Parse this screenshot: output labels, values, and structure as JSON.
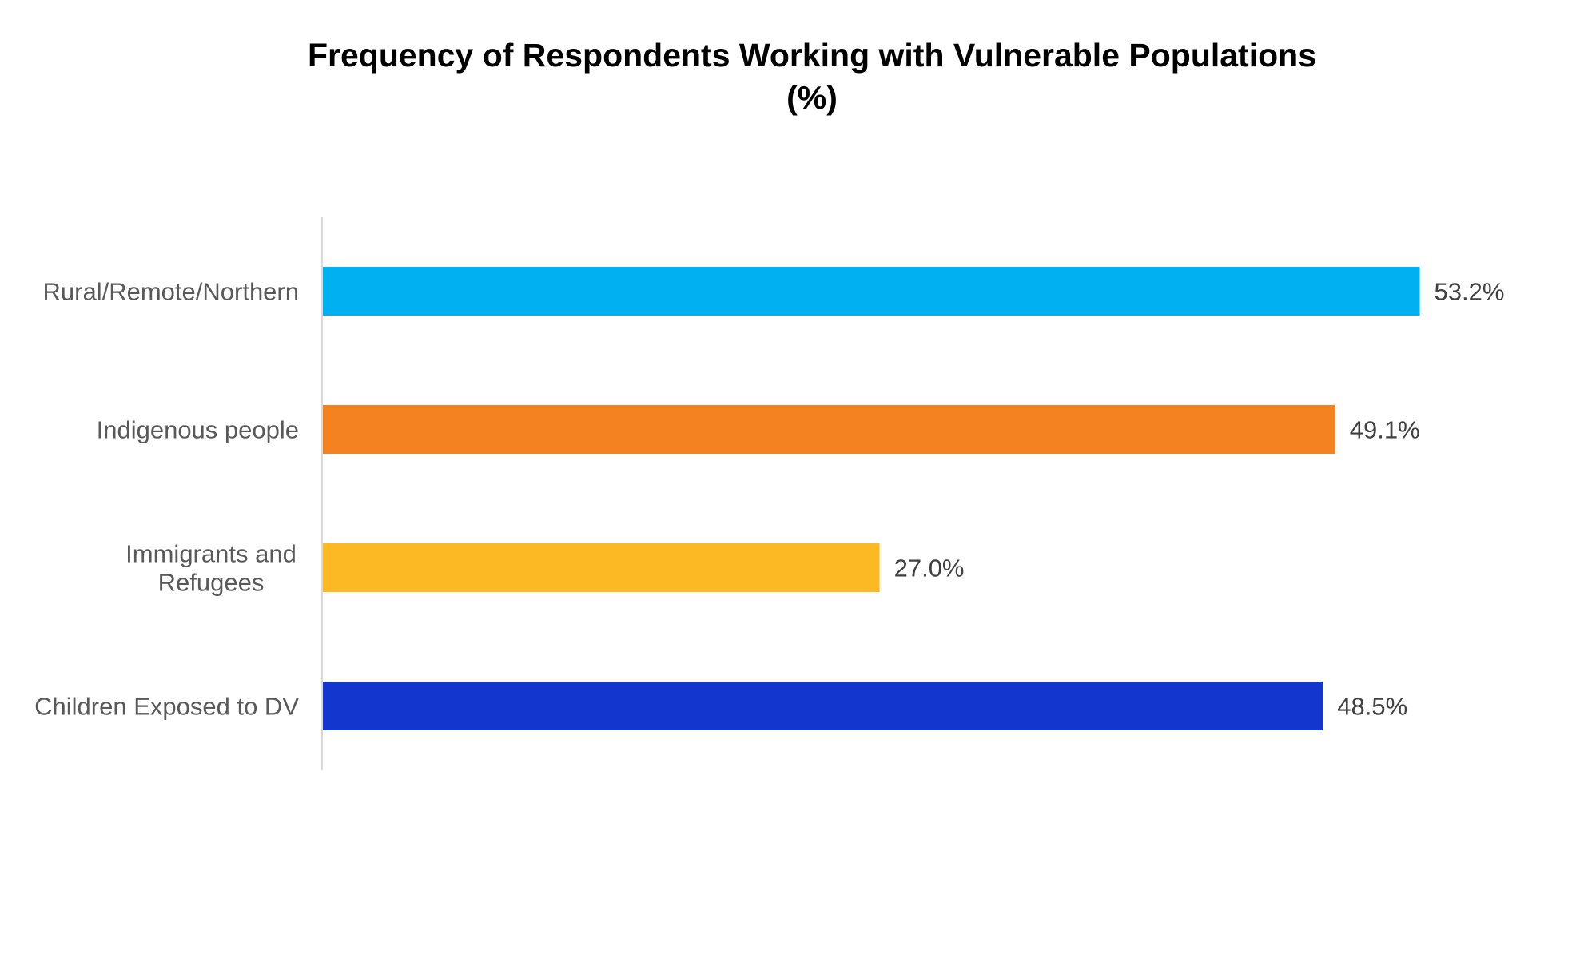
{
  "chart_data": {
    "type": "bar",
    "orientation": "horizontal",
    "title": "Frequency of Respondents Working with Vulnerable Populations (%)",
    "title_lines": [
      "Frequency of Respondents Working with Vulnerable Populations",
      "(%)"
    ],
    "xlabel": "",
    "ylabel": "",
    "categories": [
      "Rural/Remote/Northern",
      "Indigenous people",
      "Immigrants and Refugees",
      "Children Exposed to DV"
    ],
    "category_lines": [
      [
        "Rural/Remote/Northern"
      ],
      [
        "Indigenous people"
      ],
      [
        "Immigrants and",
        "Refugees"
      ],
      [
        "Children Exposed to DV"
      ]
    ],
    "values": [
      53.2,
      49.1,
      27.0,
      48.5
    ],
    "value_labels": [
      "53.2%",
      "49.1%",
      "27.0%",
      "48.5%"
    ],
    "colors": [
      "#00B0F0",
      "#F58220",
      "#FDB924",
      "#1336CF"
    ],
    "axis_color": "#D9D9D9",
    "xlim": [
      0,
      60
    ],
    "grid": false,
    "legend": "none"
  }
}
